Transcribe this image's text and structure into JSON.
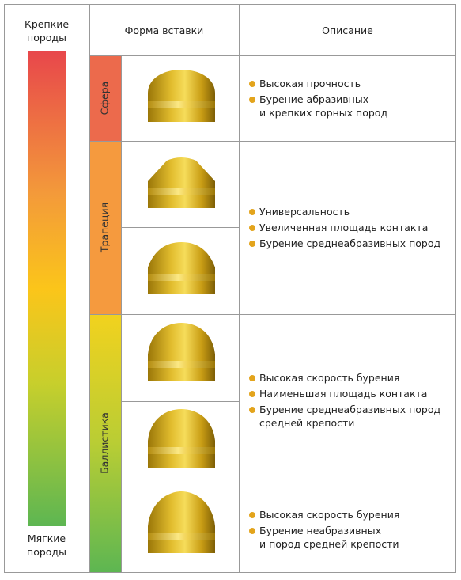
{
  "scale": {
    "top": "Крепкие\nпороды",
    "bottom": "Мягкие\nпороды"
  },
  "header": {
    "shape": "Форма вставки",
    "description": "Описание"
  },
  "groups": [
    {
      "name": "Сфера",
      "descriptions": [
        [
          "Высокая прочность",
          "Бурение абразивных\nи крепких горных пород"
        ]
      ]
    },
    {
      "name": "Трапеция",
      "descriptions": [
        [
          "Универсальность",
          "Увеличенная площадь контакта",
          "Бурение среднеабразивных пород"
        ]
      ]
    },
    {
      "name": "Баллистика",
      "descriptions": [
        [
          "Высокая скорость бурения",
          "Наименьшая площадь контакта",
          "Бурение среднеабразивных пород\nсредней крепости"
        ],
        [
          "Высокая скорость бурения",
          "Бурение неабразивных\nи пород средней крепости"
        ]
      ]
    }
  ]
}
